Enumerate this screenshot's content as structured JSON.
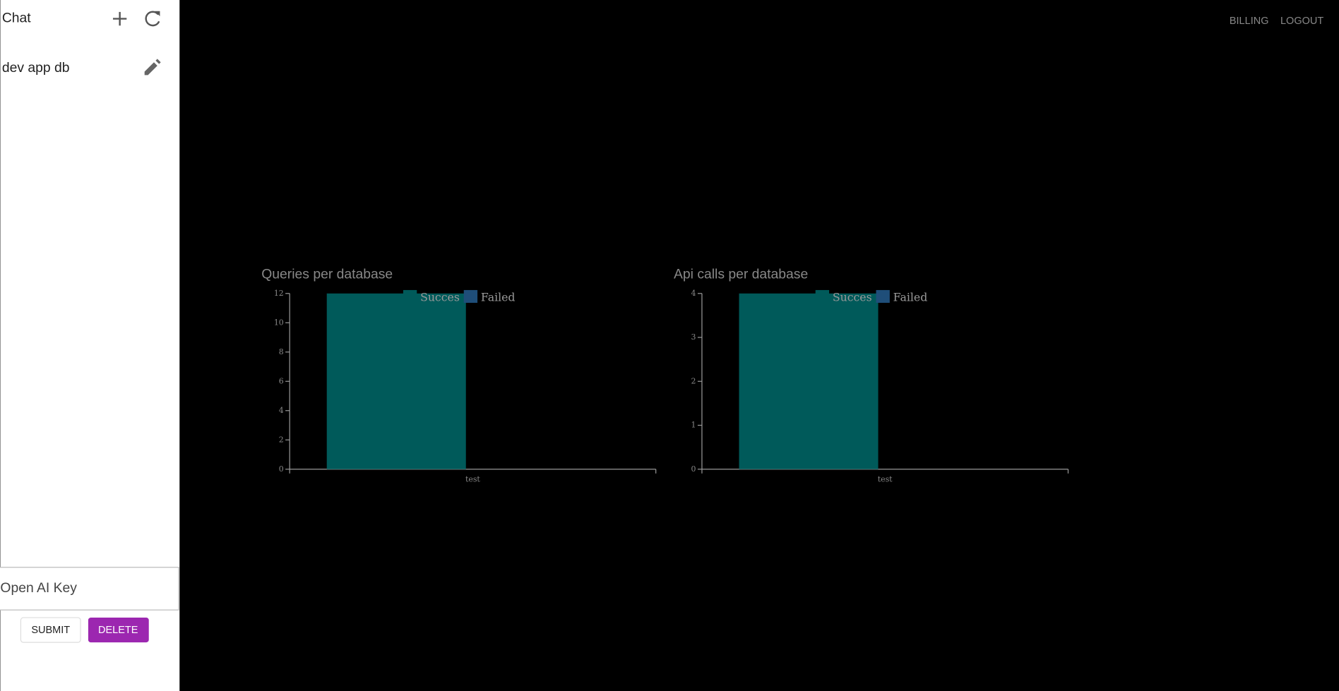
{
  "sidebar": {
    "title": "Chat",
    "items": [
      "dev app db"
    ],
    "key_input": "Open AI Key",
    "buttons": [
      "SUBMIT",
      "DELETE"
    ]
  },
  "header": {
    "links": [
      "BILLING",
      "LOGOUT"
    ]
  },
  "chart_data": [
    {
      "type": "bar",
      "title": "Queries per database",
      "categories": [
        "test"
      ],
      "series": [
        {
          "name": "Succes",
          "color": "#005a5a",
          "values": [
            12
          ]
        },
        {
          "name": "Failed",
          "color": "#1f4e79",
          "values": [
            0
          ]
        }
      ],
      "ylim": [
        0,
        12
      ],
      "yticks": [
        0,
        2,
        4,
        6,
        8,
        10,
        12
      ]
    },
    {
      "type": "bar",
      "title": "Api calls per database",
      "categories": [
        "test"
      ],
      "series": [
        {
          "name": "Succes",
          "color": "#005a5a",
          "values": [
            4
          ]
        },
        {
          "name": "Failed",
          "color": "#1f4e79",
          "values": [
            0
          ]
        }
      ],
      "ylim": [
        0,
        4
      ],
      "yticks": [
        0,
        1,
        2,
        3,
        4
      ]
    }
  ]
}
